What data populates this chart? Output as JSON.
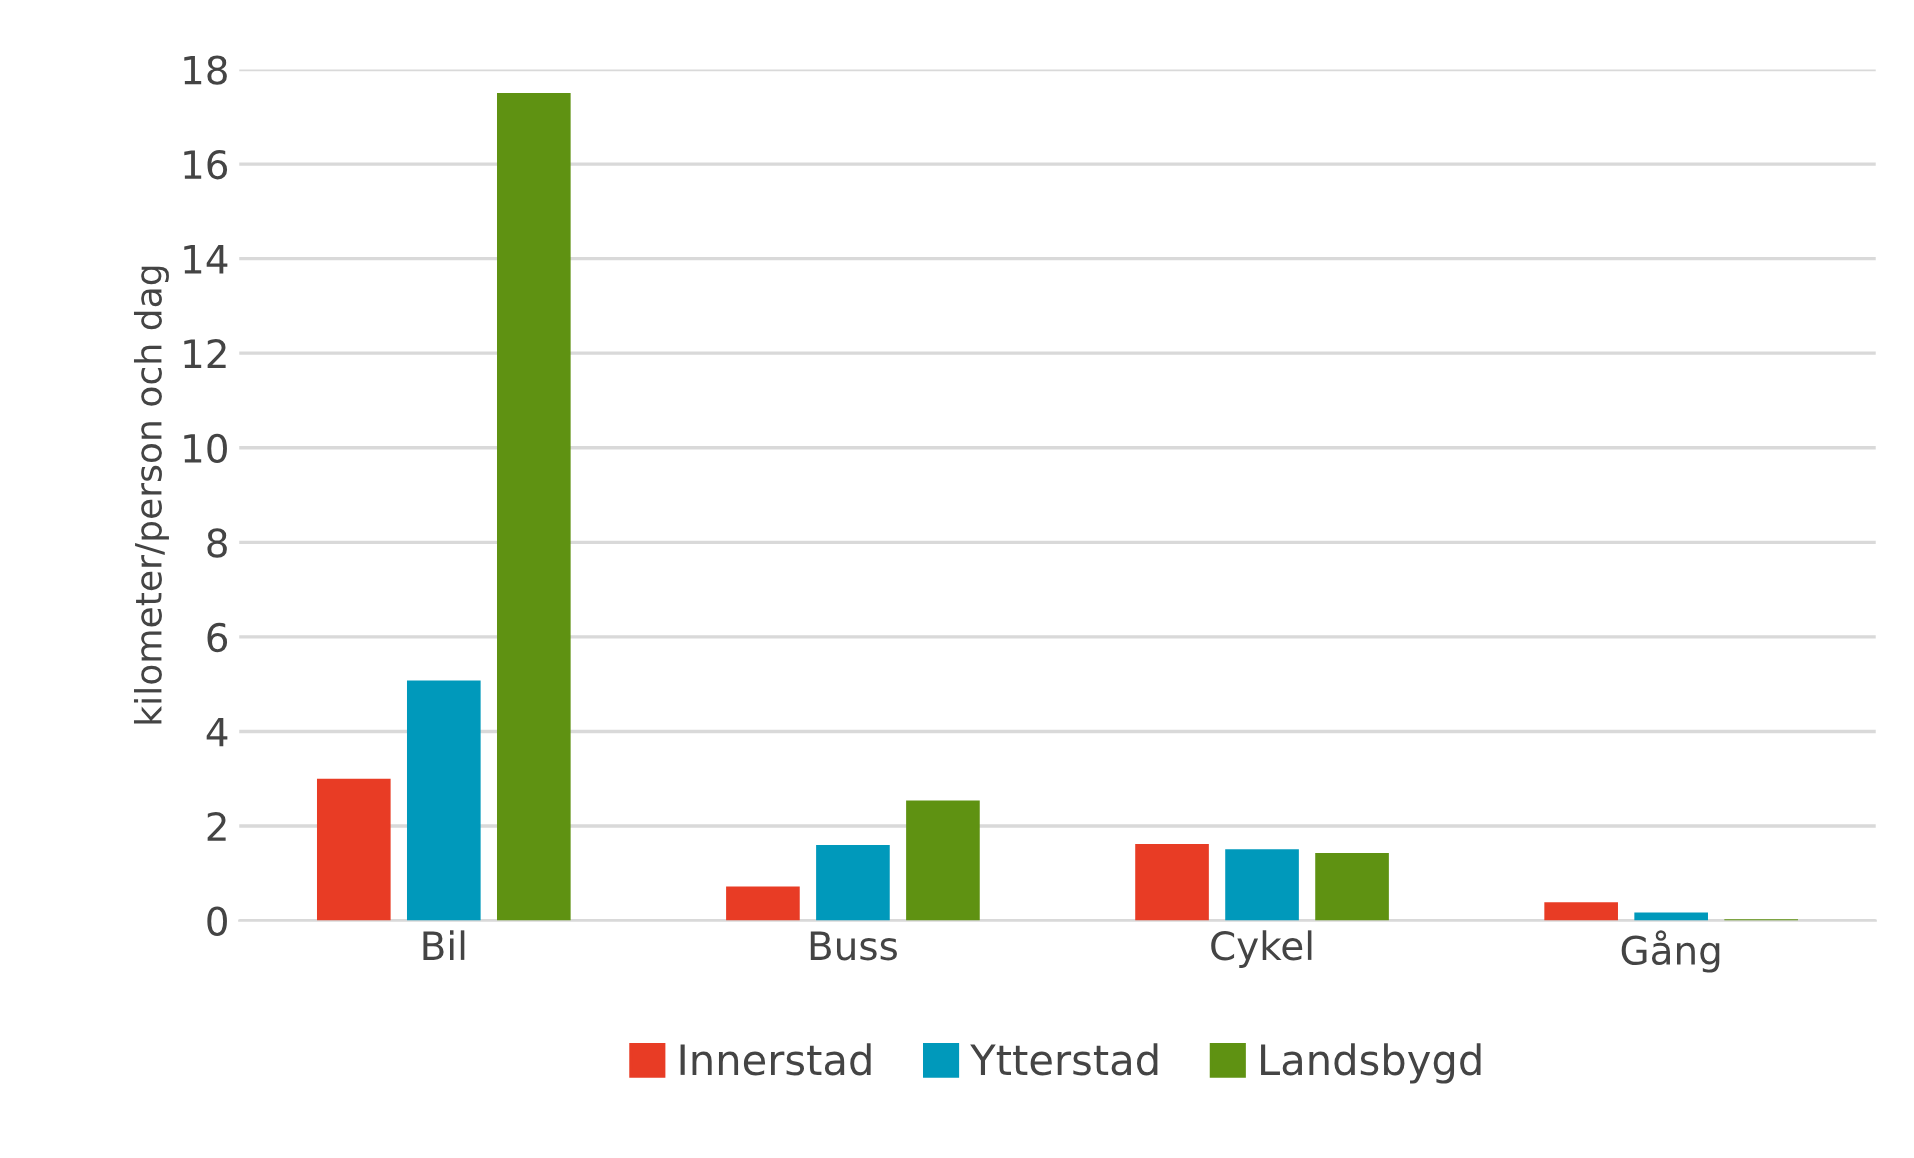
{
  "chart_data": {
    "type": "bar",
    "ylabel": "kilometer/person och dag",
    "categories": [
      "Bil",
      "Buss",
      "Cykel",
      "Gång"
    ],
    "series": [
      {
        "name": "Innerstad",
        "color": "#e83c25",
        "values": [
          3.0,
          0.72,
          1.62,
          0.39
        ]
      },
      {
        "name": "Ytterstad",
        "color": "#0099bb",
        "values": [
          5.08,
          1.6,
          1.51,
          0.17
        ]
      },
      {
        "name": "Landsbygd",
        "color": "#5f9212",
        "values": [
          17.5,
          2.54,
          1.43,
          0.03
        ]
      }
    ],
    "ylim": [
      0,
      18
    ],
    "yticks": [
      0,
      2,
      4,
      6,
      8,
      10,
      12,
      14,
      16,
      18
    ],
    "grid": "y",
    "legend": "bottom"
  }
}
